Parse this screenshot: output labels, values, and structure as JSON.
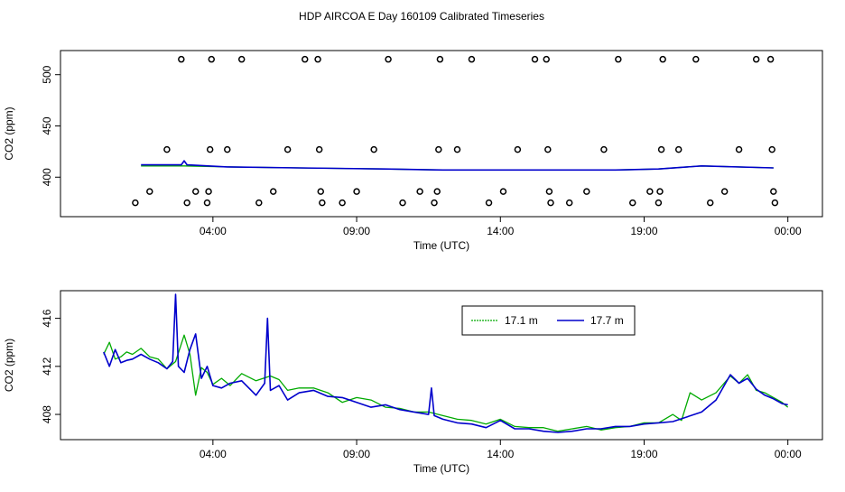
{
  "figure_title": "HDP AIRCOA E  Day 160109  Calibrated Timeseries",
  "colors": {
    "series_green": "#00aa00",
    "series_blue": "#0000cc",
    "axis": "#000000"
  },
  "chart_data": [
    {
      "type": "scatter",
      "title": "",
      "xlabel": "Time (UTC)",
      "ylabel": "CO2 (ppm)",
      "x_unit": "hours since 00:00 UTC",
      "xlim": [
        -0.8,
        24.7
      ],
      "ylim": [
        365,
        520
      ],
      "xticks": [
        4,
        9,
        14,
        19,
        24
      ],
      "xtick_labels": [
        "04:00",
        "09:00",
        "14:00",
        "19:00",
        "00:00"
      ],
      "yticks": [
        400,
        450,
        500
      ],
      "ytick_labels": [
        "400",
        "450",
        "500"
      ],
      "grid": false,
      "legend": "none",
      "points": [
        [
          1.3,
          375
        ],
        [
          1.8,
          386
        ],
        [
          2.4,
          427
        ],
        [
          2.9,
          515
        ],
        [
          3.1,
          375
        ],
        [
          3.4,
          386
        ],
        [
          3.8,
          375
        ],
        [
          3.85,
          386
        ],
        [
          3.9,
          427
        ],
        [
          3.95,
          515
        ],
        [
          4.5,
          427
        ],
        [
          5.0,
          515
        ],
        [
          5.6,
          375
        ],
        [
          6.1,
          386
        ],
        [
          6.6,
          427
        ],
        [
          7.2,
          515
        ],
        [
          7.65,
          515
        ],
        [
          7.7,
          427
        ],
        [
          7.75,
          386
        ],
        [
          7.8,
          375
        ],
        [
          8.5,
          375
        ],
        [
          9.0,
          386
        ],
        [
          9.6,
          427
        ],
        [
          10.1,
          515
        ],
        [
          10.6,
          375
        ],
        [
          11.2,
          386
        ],
        [
          11.7,
          375
        ],
        [
          11.8,
          386
        ],
        [
          11.85,
          427
        ],
        [
          11.9,
          515
        ],
        [
          12.5,
          427
        ],
        [
          13.0,
          515
        ],
        [
          13.6,
          375
        ],
        [
          14.1,
          386
        ],
        [
          14.6,
          427
        ],
        [
          15.2,
          515
        ],
        [
          15.6,
          515
        ],
        [
          15.65,
          427
        ],
        [
          15.7,
          386
        ],
        [
          15.75,
          375
        ],
        [
          16.4,
          375
        ],
        [
          17.0,
          386
        ],
        [
          17.6,
          427
        ],
        [
          18.1,
          515
        ],
        [
          18.6,
          375
        ],
        [
          19.2,
          386
        ],
        [
          19.5,
          375
        ],
        [
          19.55,
          386
        ],
        [
          19.6,
          427
        ],
        [
          19.65,
          515
        ],
        [
          20.2,
          427
        ],
        [
          20.8,
          515
        ],
        [
          21.3,
          375
        ],
        [
          21.8,
          386
        ],
        [
          22.3,
          427
        ],
        [
          22.9,
          515
        ],
        [
          23.4,
          515
        ],
        [
          23.45,
          427
        ],
        [
          23.5,
          386
        ],
        [
          23.55,
          375
        ]
      ],
      "series": [
        {
          "color": "#00aa00",
          "x": [
            1.5,
            3.0,
            4.5,
            7.0,
            10.0,
            12.0,
            14.0,
            16.0,
            18.0,
            19.5,
            21.0,
            23.5
          ],
          "y": [
            411,
            411,
            410,
            409,
            408,
            407,
            407,
            407,
            407,
            408,
            411,
            409
          ]
        },
        {
          "color": "#0000cc",
          "x": [
            1.5,
            2.9,
            3.0,
            3.1,
            4.5,
            7.0,
            10.0,
            12.0,
            14.0,
            16.0,
            18.0,
            19.5,
            21.0,
            23.5
          ],
          "y": [
            412,
            412,
            416,
            412,
            410,
            409,
            408,
            407,
            407,
            407,
            407,
            408,
            411,
            409
          ]
        }
      ]
    },
    {
      "type": "line",
      "title": "",
      "xlabel": "Time (UTC)",
      "ylabel": "CO2 (ppm)",
      "x_unit": "hours since 00:00 UTC",
      "xlim": [
        -0.8,
        24.7
      ],
      "ylim": [
        406.2,
        418.0
      ],
      "xticks": [
        4,
        9,
        14,
        19,
        24
      ],
      "xtick_labels": [
        "04:00",
        "09:00",
        "14:00",
        "19:00",
        "00:00"
      ],
      "yticks": [
        408,
        412,
        416
      ],
      "ytick_labels": [
        "408",
        "412",
        "416"
      ],
      "grid": false,
      "legend": "top-right",
      "series": [
        {
          "name": "17.1 m",
          "color": "#00aa00",
          "x": [
            0.2,
            0.4,
            0.6,
            0.8,
            1.0,
            1.2,
            1.5,
            1.8,
            2.1,
            2.4,
            2.7,
            3.0,
            3.2,
            3.4,
            3.6,
            3.8,
            4.0,
            4.3,
            4.6,
            5.0,
            5.5,
            6.0,
            6.3,
            6.6,
            7.0,
            7.5,
            8.0,
            8.5,
            9.0,
            9.5,
            10.0,
            10.5,
            11.0,
            11.5,
            12.0,
            12.5,
            13.0,
            13.5,
            14.0,
            14.5,
            15.0,
            15.5,
            16.0,
            16.5,
            17.0,
            17.5,
            18.0,
            18.5,
            19.0,
            19.5,
            20.0,
            20.3,
            20.6,
            21.0,
            21.5,
            22.0,
            22.3,
            22.6,
            22.9,
            23.2,
            23.5,
            23.8,
            24.0
          ],
          "y": [
            413.0,
            414.0,
            412.6,
            412.8,
            413.2,
            413.0,
            413.5,
            412.8,
            412.6,
            411.8,
            412.4,
            414.6,
            413.0,
            409.6,
            411.9,
            411.5,
            410.5,
            411.0,
            410.4,
            411.4,
            410.8,
            411.2,
            410.9,
            410.0,
            410.2,
            410.2,
            409.8,
            409.0,
            409.4,
            409.2,
            408.6,
            408.5,
            408.2,
            408.2,
            407.9,
            407.6,
            407.5,
            407.2,
            407.6,
            407.0,
            406.9,
            406.9,
            406.6,
            406.8,
            407.0,
            406.7,
            406.9,
            407.0,
            407.3,
            407.3,
            408.0,
            407.5,
            409.8,
            409.2,
            409.8,
            411.2,
            410.6,
            411.3,
            410.0,
            409.8,
            409.4,
            409.0,
            408.6
          ]
        },
        {
          "name": "17.7 m",
          "color": "#0000cc",
          "x": [
            0.2,
            0.4,
            0.6,
            0.8,
            1.0,
            1.2,
            1.5,
            1.8,
            2.1,
            2.4,
            2.6,
            2.7,
            2.8,
            3.0,
            3.2,
            3.4,
            3.6,
            3.8,
            4.0,
            4.3,
            4.6,
            5.0,
            5.5,
            5.8,
            5.9,
            6.0,
            6.3,
            6.6,
            7.0,
            7.5,
            8.0,
            8.5,
            9.0,
            9.5,
            10.0,
            10.5,
            11.0,
            11.5,
            11.6,
            11.7,
            12.0,
            12.5,
            13.0,
            13.5,
            14.0,
            14.5,
            15.0,
            15.5,
            16.0,
            16.5,
            17.0,
            17.5,
            18.0,
            18.5,
            19.0,
            19.5,
            20.0,
            20.5,
            21.0,
            21.5,
            22.0,
            22.3,
            22.6,
            22.9,
            23.2,
            23.5,
            23.8,
            24.0
          ],
          "y": [
            413.2,
            412.0,
            413.4,
            412.3,
            412.5,
            412.6,
            413.0,
            412.6,
            412.3,
            411.8,
            412.4,
            418.0,
            412.0,
            411.5,
            413.4,
            414.7,
            411.0,
            412.0,
            410.4,
            410.2,
            410.6,
            410.8,
            409.6,
            410.6,
            416.0,
            410.0,
            410.4,
            409.2,
            409.8,
            410.0,
            409.5,
            409.4,
            409.0,
            408.6,
            408.8,
            408.4,
            408.2,
            408.0,
            410.2,
            407.9,
            407.6,
            407.3,
            407.2,
            406.9,
            407.5,
            406.8,
            406.8,
            406.6,
            406.5,
            406.6,
            406.8,
            406.8,
            407.0,
            407.0,
            407.2,
            407.3,
            407.4,
            407.8,
            408.2,
            409.2,
            411.3,
            410.6,
            411.0,
            410.1,
            409.6,
            409.3,
            408.9,
            408.8
          ]
        }
      ]
    }
  ]
}
